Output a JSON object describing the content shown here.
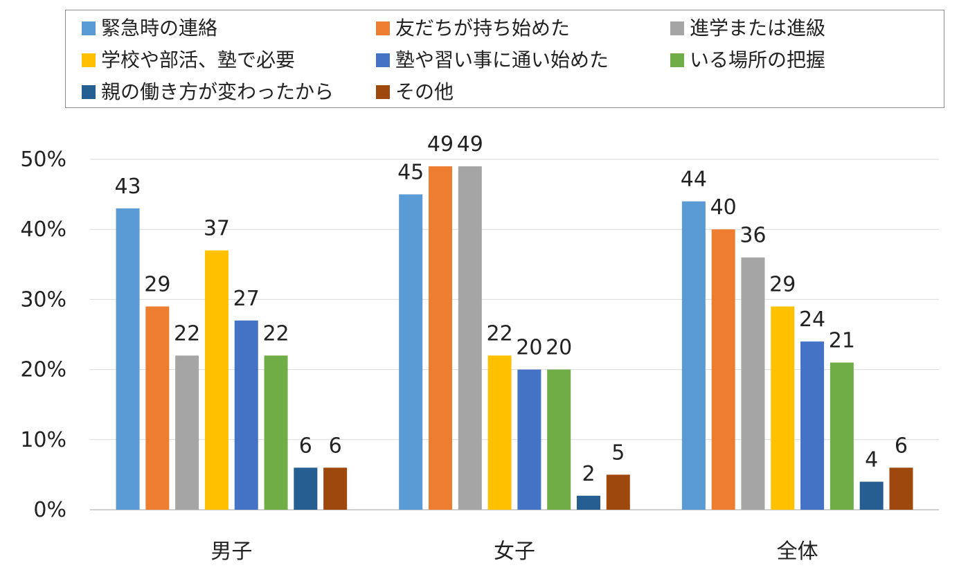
{
  "chart_data": {
    "type": "bar",
    "title": "",
    "xlabel": "",
    "ylabel": "",
    "ylim": [
      0,
      50
    ],
    "y_ticks": [
      "0%",
      "10%",
      "20%",
      "30%",
      "40%",
      "50%"
    ],
    "grid": true,
    "legend_position": "top",
    "categories": [
      "男子",
      "女子",
      "全体"
    ],
    "series": [
      {
        "name": "緊急時の連絡",
        "color": "#5B9BD5",
        "values": [
          43,
          45,
          44
        ]
      },
      {
        "name": "友だちが持ち始めた",
        "color": "#ED7D31",
        "values": [
          29,
          49,
          40
        ]
      },
      {
        "name": "進学または進級",
        "color": "#A5A5A5",
        "values": [
          22,
          49,
          36
        ]
      },
      {
        "name": "学校や部活、塾で必要",
        "color": "#FFC000",
        "values": [
          37,
          22,
          29
        ]
      },
      {
        "name": "塾や習い事に通い始めた",
        "color": "#4472C4",
        "values": [
          27,
          20,
          24
        ]
      },
      {
        "name": "いる場所の把握",
        "color": "#70AD47",
        "values": [
          22,
          20,
          21
        ]
      },
      {
        "name": "親の働き方が変わったから",
        "color": "#255E91",
        "values": [
          6,
          2,
          4
        ]
      },
      {
        "name": "その他",
        "color": "#9E480E",
        "values": [
          6,
          5,
          6
        ]
      }
    ]
  }
}
